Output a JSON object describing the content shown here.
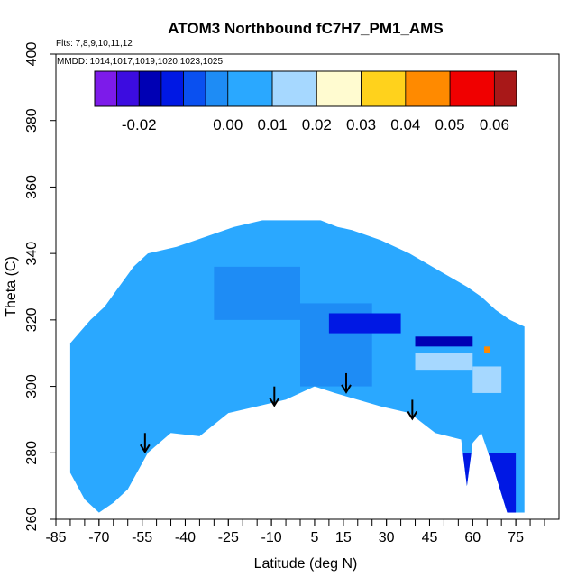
{
  "chart_data": {
    "type": "heatmap",
    "title": "ATOM3 Northbound fC7H7_PM1_AMS",
    "subtitle_flights": "Flts: 7,8,9,10,11,12",
    "subtitle_dates": "MMDD: 1014,1017,1019,1020,1023,1025",
    "xlabel": "Latitude (deg N)",
    "ylabel": "Theta (C)",
    "xlim": [
      -85,
      85
    ],
    "ylim": [
      260,
      400
    ],
    "x_ticks": [
      -85,
      -70,
      -55,
      -40,
      -25,
      -10,
      5,
      15,
      30,
      45,
      60,
      75
    ],
    "x_tick_labels": [
      "-85",
      "-70",
      "-55",
      "-40",
      "-25",
      "-10",
      "5",
      "15",
      "30",
      "45",
      "60",
      "75"
    ],
    "x_minor_step": 5,
    "y_ticks": [
      260,
      280,
      300,
      320,
      340,
      360,
      380,
      400
    ],
    "y_tick_labels": [
      "260",
      "280",
      "300",
      "320",
      "340",
      "360",
      "380",
      "400"
    ],
    "colorbar": {
      "bins": [
        {
          "lo": -0.03,
          "hi": -0.025,
          "color": "#7d1bea"
        },
        {
          "lo": -0.025,
          "hi": -0.02,
          "color": "#3c0ce0"
        },
        {
          "lo": -0.02,
          "hi": -0.015,
          "color": "#0000b4"
        },
        {
          "lo": -0.015,
          "hi": -0.01,
          "color": "#0018e4"
        },
        {
          "lo": -0.01,
          "hi": -0.005,
          "color": "#0a50f0"
        },
        {
          "lo": -0.005,
          "hi": 0.0,
          "color": "#1e8cf5"
        },
        {
          "lo": 0.0,
          "hi": 0.01,
          "color": "#2aa8ff"
        },
        {
          "lo": 0.01,
          "hi": 0.02,
          "color": "#a6d8ff"
        },
        {
          "lo": 0.02,
          "hi": 0.03,
          "color": "#fffbd0"
        },
        {
          "lo": 0.03,
          "hi": 0.04,
          "color": "#ffd21c"
        },
        {
          "lo": 0.04,
          "hi": 0.05,
          "color": "#ff8a00"
        },
        {
          "lo": 0.05,
          "hi": 0.06,
          "color": "#f00000"
        },
        {
          "lo": 0.06,
          "hi": 0.065,
          "color": "#a81818"
        }
      ],
      "tick_values": [
        -0.02,
        0.0,
        0.01,
        0.02,
        0.03,
        0.04,
        0.05,
        0.06
      ],
      "tick_labels": [
        "-0.02",
        "0.00",
        "0.01",
        "0.02",
        "0.03",
        "0.04",
        "0.05",
        "0.06"
      ]
    },
    "data_envelope": {
      "upper": [
        [
          -80,
          313
        ],
        [
          -77,
          316
        ],
        [
          -73,
          320
        ],
        [
          -68,
          324
        ],
        [
          -63,
          330
        ],
        [
          -58,
          336
        ],
        [
          -53,
          340
        ],
        [
          -43,
          342
        ],
        [
          -33,
          345
        ],
        [
          -23,
          348
        ],
        [
          -13,
          350
        ],
        [
          -3,
          350
        ],
        [
          7,
          350
        ],
        [
          13,
          348
        ],
        [
          18,
          347
        ],
        [
          28,
          344
        ],
        [
          38,
          340
        ],
        [
          48,
          335
        ],
        [
          58,
          330
        ],
        [
          63,
          327
        ],
        [
          68,
          323
        ],
        [
          73,
          320
        ],
        [
          78,
          318
        ]
      ],
      "lower": [
        [
          78,
          262
        ],
        [
          72,
          262
        ],
        [
          67,
          276
        ],
        [
          63,
          286
        ],
        [
          60,
          283
        ],
        [
          58,
          270
        ],
        [
          56,
          284
        ],
        [
          47,
          286
        ],
        [
          38,
          292
        ],
        [
          28,
          294
        ],
        [
          16,
          297
        ],
        [
          12,
          298
        ],
        [
          5,
          300
        ],
        [
          -5,
          296
        ],
        [
          -15,
          294
        ],
        [
          -25,
          292
        ],
        [
          -35,
          285
        ],
        [
          -45,
          286
        ],
        [
          -53,
          280
        ],
        [
          -60,
          269
        ],
        [
          -65,
          265
        ],
        [
          -70,
          262
        ],
        [
          -75,
          266
        ],
        [
          -80,
          274
        ]
      ]
    },
    "tropopause_arrows": [
      {
        "lat": -54,
        "theta": 280
      },
      {
        "lat": -9,
        "theta": 294
      },
      {
        "lat": 16,
        "theta": 298
      },
      {
        "lat": 39,
        "theta": 290
      }
    ],
    "notable_patches": [
      {
        "lat_lo": -82,
        "lat_hi": 80,
        "theta_lo": 262,
        "theta_hi": 350,
        "value": 0.006
      },
      {
        "lat_lo": -70,
        "lat_hi": -50,
        "theta_lo": 300,
        "theta_hi": 330,
        "value": 0.003
      },
      {
        "lat_lo": -40,
        "lat_hi": -20,
        "theta_lo": 318,
        "theta_hi": 326,
        "value": 0.002
      },
      {
        "lat_lo": -30,
        "lat_hi": 0,
        "theta_lo": 320,
        "theta_hi": 336,
        "value": -0.003
      },
      {
        "lat_lo": 0,
        "lat_hi": 25,
        "theta_lo": 300,
        "theta_hi": 325,
        "value": -0.004
      },
      {
        "lat_lo": 10,
        "lat_hi": 35,
        "theta_lo": 316,
        "theta_hi": 322,
        "value": -0.012
      },
      {
        "lat_lo": 40,
        "lat_hi": 60,
        "theta_lo": 312,
        "theta_hi": 315,
        "value": -0.018
      },
      {
        "lat_lo": 40,
        "lat_hi": 60,
        "theta_lo": 305,
        "theta_hi": 310,
        "value": 0.011
      },
      {
        "lat_lo": 55,
        "lat_hi": 75,
        "theta_lo": 262,
        "theta_hi": 280,
        "value": -0.013
      },
      {
        "lat_lo": 60,
        "lat_hi": 70,
        "theta_lo": 298,
        "theta_hi": 306,
        "value": 0.012
      },
      {
        "lat_lo": 64,
        "lat_hi": 66,
        "theta_lo": 310,
        "theta_hi": 312,
        "value": 0.045
      }
    ]
  }
}
